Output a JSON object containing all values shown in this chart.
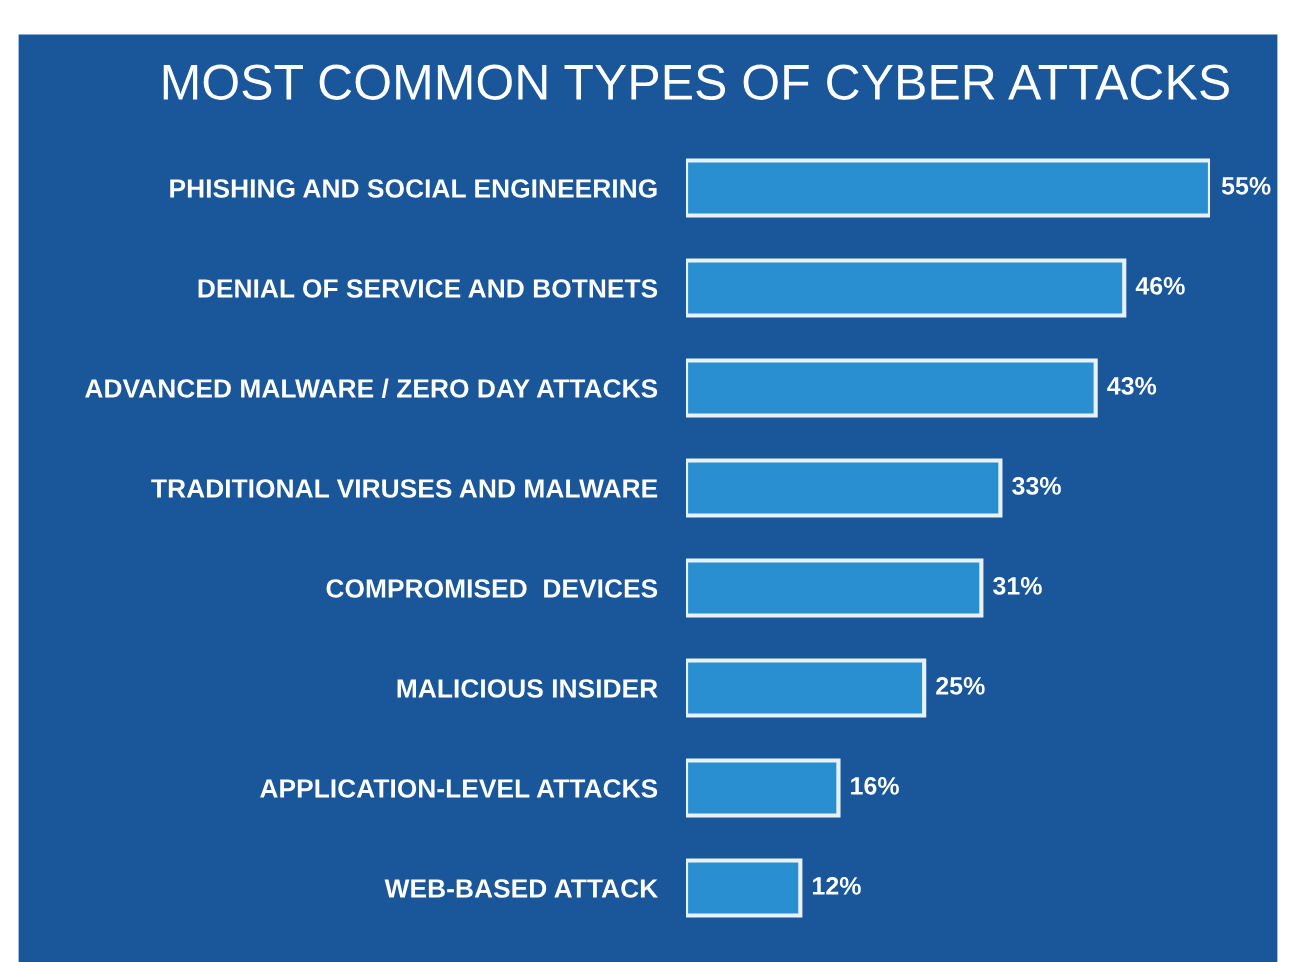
{
  "chart_data": {
    "type": "bar",
    "orientation": "horizontal",
    "title": "MOST COMMON TYPES OF CYBER ATTACKS",
    "categories": [
      "PHISHING AND SOCIAL ENGINEERING",
      "DENIAL OF SERVICE AND BOTNETS",
      "ADVANCED MALWARE / ZERO DAY ATTACKS",
      "TRADITIONAL VIRUSES AND MALWARE",
      "COMPROMISED  DEVICES",
      "MALICIOUS INSIDER",
      "APPLICATION-LEVEL ATTACKS",
      "WEB-BASED ATTACK"
    ],
    "values": [
      55,
      46,
      43,
      33,
      31,
      25,
      16,
      12
    ],
    "value_labels": [
      "55%",
      "46%",
      "43%",
      "33%",
      "31%",
      "25%",
      "16%",
      "12%"
    ],
    "color": "#2a8fd0",
    "grid": false,
    "legend": false
  }
}
